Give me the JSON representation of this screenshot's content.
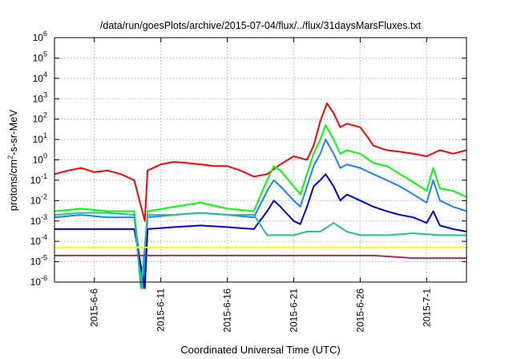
{
  "chart_data": {
    "type": "line",
    "title": "/data/run/goesPlots/archive/2015-07-04/flux/../flux/31daysMarsFluxes.txt",
    "xlabel": "Coordinated Universal Time (UTC)",
    "ylabel": {
      "base": "protons/cm",
      "sup": "2",
      "rest": "-s-sr-MeV"
    },
    "yscale": "log",
    "ylim_exp": [
      -6,
      6
    ],
    "xlim": [
      "2015-06-03",
      "2015-07-04"
    ],
    "grid": true,
    "yticks": [
      {
        "exp": -6,
        "base": "10",
        "sup": "-6"
      },
      {
        "exp": -5,
        "base": "10",
        "sup": "-5"
      },
      {
        "exp": -4,
        "base": "10",
        "sup": "-4"
      },
      {
        "exp": -3,
        "base": "10",
        "sup": "-3"
      },
      {
        "exp": -2,
        "base": "10",
        "sup": "-2"
      },
      {
        "exp": -1,
        "base": "10",
        "sup": "-1"
      },
      {
        "exp": 0,
        "base": "10",
        "sup": "0"
      },
      {
        "exp": 1,
        "base": "10",
        "sup": "1"
      },
      {
        "exp": 2,
        "base": "10",
        "sup": "2"
      },
      {
        "exp": 3,
        "base": "10",
        "sup": "3"
      },
      {
        "exp": 4,
        "base": "10",
        "sup": "4"
      },
      {
        "exp": 5,
        "base": "10",
        "sup": "5"
      },
      {
        "exp": 6,
        "base": "10",
        "sup": "6"
      }
    ],
    "xticks": [
      "2015-6-6",
      "2015-6-11",
      "2015-6-16",
      "2015-6-21",
      "2015-6-26",
      "2015-7-1"
    ],
    "series": [
      {
        "color": "#ff0000",
        "points": [
          [
            "2015-06-03",
            0.2
          ],
          [
            "2015-06-04",
            0.3
          ],
          [
            "2015-06-05",
            0.4
          ],
          [
            "2015-06-06",
            0.25
          ],
          [
            "2015-06-07",
            0.3
          ],
          [
            "2015-06-08",
            0.2
          ],
          [
            "2015-06-09",
            0.1
          ],
          [
            "2015-06-09.8",
            0.001
          ],
          [
            "2015-06-10",
            0.3
          ],
          [
            "2015-06-11",
            0.6
          ],
          [
            "2015-06-12",
            0.8
          ],
          [
            "2015-06-13",
            0.7
          ],
          [
            "2015-06-14",
            0.6
          ],
          [
            "2015-06-15",
            0.5
          ],
          [
            "2015-06-16",
            0.5
          ],
          [
            "2015-06-17",
            0.3
          ],
          [
            "2015-06-18",
            0.15
          ],
          [
            "2015-06-19",
            0.2
          ],
          [
            "2015-06-20",
            0.6
          ],
          [
            "2015-06-21",
            1.5
          ],
          [
            "2015-06-22",
            1.0
          ],
          [
            "2015-06-22.5",
            5
          ],
          [
            "2015-06-23",
            80
          ],
          [
            "2015-06-23.5",
            600
          ],
          [
            "2015-06-24",
            200
          ],
          [
            "2015-06-24.5",
            40
          ],
          [
            "2015-06-25",
            60
          ],
          [
            "2015-06-26",
            40
          ],
          [
            "2015-06-26.5",
            15
          ],
          [
            "2015-06-27",
            5
          ],
          [
            "2015-06-28",
            3
          ],
          [
            "2015-06-29",
            2.5
          ],
          [
            "2015-06-30",
            2
          ],
          [
            "2015-07-01",
            1.5
          ],
          [
            "2015-07-02",
            3
          ],
          [
            "2015-07-03",
            2
          ],
          [
            "2015-07-04",
            3
          ]
        ]
      },
      {
        "color": "#00ff00",
        "points": [
          [
            "2015-06-03",
            0.003
          ],
          [
            "2015-06-05",
            0.004
          ],
          [
            "2015-06-07",
            0.003
          ],
          [
            "2015-06-09",
            0.003
          ],
          [
            "2015-06-09.6",
            5e-07
          ],
          [
            "2015-06-10",
            0.003
          ],
          [
            "2015-06-12",
            0.005
          ],
          [
            "2015-06-14",
            0.008
          ],
          [
            "2015-06-16",
            0.004
          ],
          [
            "2015-06-18",
            0.003
          ],
          [
            "2015-06-19",
            0.1
          ],
          [
            "2015-06-19.5",
            0.5
          ],
          [
            "2015-06-20",
            0.3
          ],
          [
            "2015-06-21",
            0.05
          ],
          [
            "2015-06-21.5",
            0.02
          ],
          [
            "2015-06-22",
            0.2
          ],
          [
            "2015-06-22.5",
            2
          ],
          [
            "2015-06-23",
            10
          ],
          [
            "2015-06-23.4",
            50
          ],
          [
            "2015-06-24",
            10
          ],
          [
            "2015-06-24.5",
            2
          ],
          [
            "2015-06-25",
            3
          ],
          [
            "2015-06-26",
            2
          ],
          [
            "2015-06-27",
            0.7
          ],
          [
            "2015-06-28",
            0.5
          ],
          [
            "2015-06-29",
            0.2
          ],
          [
            "2015-06-30",
            0.08
          ],
          [
            "2015-07-01",
            0.03
          ],
          [
            "2015-07-01.5",
            0.4
          ],
          [
            "2015-07-02",
            0.04
          ],
          [
            "2015-07-03",
            0.03
          ],
          [
            "2015-07-04",
            0.015
          ]
        ]
      },
      {
        "color": "#1e7fff",
        "points": [
          [
            "2015-06-03",
            0.0015
          ],
          [
            "2015-06-05",
            0.002
          ],
          [
            "2015-06-07",
            0.0015
          ],
          [
            "2015-06-09",
            0.0015
          ],
          [
            "2015-06-09.7",
            5e-07
          ],
          [
            "2015-06-10",
            0.0015
          ],
          [
            "2015-06-12",
            0.002
          ],
          [
            "2015-06-14",
            0.0025
          ],
          [
            "2015-06-16",
            0.002
          ],
          [
            "2015-06-18",
            0.0015
          ],
          [
            "2015-06-19",
            0.03
          ],
          [
            "2015-06-19.5",
            0.1
          ],
          [
            "2015-06-20",
            0.05
          ],
          [
            "2015-06-21",
            0.01
          ],
          [
            "2015-06-21.5",
            0.005
          ],
          [
            "2015-06-22",
            0.05
          ],
          [
            "2015-06-22.5",
            0.5
          ],
          [
            "2015-06-23",
            2
          ],
          [
            "2015-06-23.4",
            10
          ],
          [
            "2015-06-24",
            2
          ],
          [
            "2015-06-24.5",
            0.4
          ],
          [
            "2015-06-25",
            0.6
          ],
          [
            "2015-06-26",
            0.4
          ],
          [
            "2015-06-27",
            0.2
          ],
          [
            "2015-06-28",
            0.1
          ],
          [
            "2015-06-29",
            0.05
          ],
          [
            "2015-06-30",
            0.02
          ],
          [
            "2015-07-01",
            0.008
          ],
          [
            "2015-07-01.5",
            0.1
          ],
          [
            "2015-07-02",
            0.01
          ],
          [
            "2015-07-03",
            0.005
          ],
          [
            "2015-07-04",
            0.003
          ]
        ]
      },
      {
        "color": "#0000dd",
        "points": [
          [
            "2015-06-03",
            0.0004
          ],
          [
            "2015-06-05",
            0.0004
          ],
          [
            "2015-06-07",
            0.0004
          ],
          [
            "2015-06-09",
            0.0004
          ],
          [
            "2015-06-09.8",
            5e-07
          ],
          [
            "2015-06-10",
            0.0004
          ],
          [
            "2015-06-12",
            0.0005
          ],
          [
            "2015-06-14",
            0.0006
          ],
          [
            "2015-06-16",
            0.0005
          ],
          [
            "2015-06-18",
            0.0004
          ],
          [
            "2015-06-19",
            0.003
          ],
          [
            "2015-06-19.5",
            0.01
          ],
          [
            "2015-06-20",
            0.005
          ],
          [
            "2015-06-21",
            0.001
          ],
          [
            "2015-06-21.5",
            0.0007
          ],
          [
            "2015-06-22",
            0.005
          ],
          [
            "2015-06-22.5",
            0.05
          ],
          [
            "2015-06-23",
            0.1
          ],
          [
            "2015-06-23.4",
            0.2
          ],
          [
            "2015-06-24",
            0.05
          ],
          [
            "2015-06-24.5",
            0.01
          ],
          [
            "2015-06-25",
            0.02
          ],
          [
            "2015-06-26",
            0.01
          ],
          [
            "2015-06-27",
            0.005
          ],
          [
            "2015-06-28",
            0.003
          ],
          [
            "2015-06-29",
            0.002
          ],
          [
            "2015-06-30",
            0.0015
          ],
          [
            "2015-07-01",
            0.0008
          ],
          [
            "2015-07-01.5",
            0.003
          ],
          [
            "2015-07-02",
            0.0006
          ],
          [
            "2015-07-03",
            0.0004
          ],
          [
            "2015-07-04",
            0.0003
          ]
        ]
      },
      {
        "color": "#20c090",
        "points": [
          [
            "2015-06-03",
            0.002
          ],
          [
            "2015-06-05",
            0.0025
          ],
          [
            "2015-06-07",
            0.0025
          ],
          [
            "2015-06-09",
            0.002
          ],
          [
            "2015-06-09.5",
            5e-07
          ],
          [
            "2015-06-10",
            0.002
          ],
          [
            "2015-06-12",
            0.002
          ],
          [
            "2015-06-14",
            0.0025
          ],
          [
            "2015-06-16",
            0.002
          ],
          [
            "2015-06-18",
            0.002
          ],
          [
            "2015-06-19",
            0.0002
          ],
          [
            "2015-06-20",
            0.0002
          ],
          [
            "2015-06-21",
            0.0002
          ],
          [
            "2015-06-22",
            0.0003
          ],
          [
            "2015-06-23",
            0.0003
          ],
          [
            "2015-06-24",
            0.0008
          ],
          [
            "2015-06-25",
            0.0003
          ],
          [
            "2015-06-26",
            0.0002
          ],
          [
            "2015-06-28",
            0.0002
          ],
          [
            "2015-06-30",
            0.00025
          ],
          [
            "2015-07-02",
            0.0002
          ],
          [
            "2015-07-04",
            0.0002
          ]
        ]
      },
      {
        "color": "#ffff00",
        "points": [
          [
            "2015-06-03",
            5e-05
          ],
          [
            "2015-06-06",
            5e-05
          ],
          [
            "2015-06-09",
            5e-05
          ],
          [
            "2015-06-12",
            5e-05
          ],
          [
            "2015-06-15",
            5e-05
          ],
          [
            "2015-06-18",
            5e-05
          ],
          [
            "2015-06-21",
            5e-05
          ],
          [
            "2015-06-24",
            5e-05
          ],
          [
            "2015-06-27",
            5e-05
          ],
          [
            "2015-06-30",
            5e-05
          ],
          [
            "2015-07-04",
            5e-05
          ]
        ]
      },
      {
        "color": "#a03060",
        "points": [
          [
            "2015-06-03",
            2e-05
          ],
          [
            "2015-06-06",
            2e-05
          ],
          [
            "2015-06-09",
            2e-05
          ],
          [
            "2015-06-12",
            2e-05
          ],
          [
            "2015-06-15",
            2e-05
          ],
          [
            "2015-06-18",
            2e-05
          ],
          [
            "2015-06-21",
            2e-05
          ],
          [
            "2015-06-24",
            2e-05
          ],
          [
            "2015-06-27",
            2e-05
          ],
          [
            "2015-06-30",
            1.5e-05
          ],
          [
            "2015-07-04",
            1.5e-05
          ]
        ]
      }
    ]
  }
}
